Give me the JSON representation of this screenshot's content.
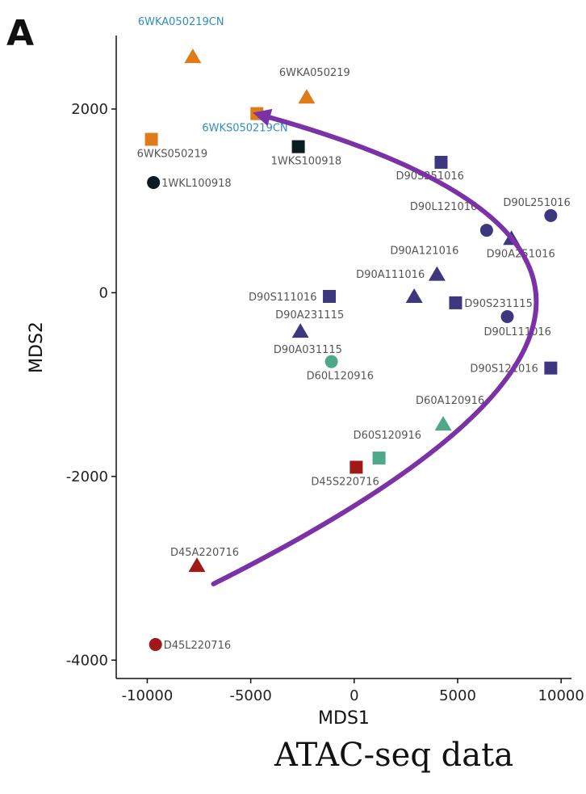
{
  "panel_label": "A",
  "caption": "ATAC-seq data",
  "colors": {
    "orange": "#e07b1a",
    "navy": "#3d3780",
    "dark": "#0c1a22",
    "teal": "#4ea88a",
    "red": "#a01818",
    "arrow": "#7a32a6"
  },
  "chart_data": {
    "type": "scatter",
    "title": "",
    "xlabel": "MDS1",
    "ylabel": "MDS2",
    "xlim": [
      -11500,
      10500
    ],
    "ylim": [
      -4200,
      2800
    ],
    "xticks": [
      -10000,
      -5000,
      0,
      5000,
      10000
    ],
    "xtick_labels": [
      "-10000",
      "-5000",
      "0",
      "5000",
      "10000"
    ],
    "yticks": [
      -4000,
      -2000,
      0,
      2000
    ],
    "ytick_labels": [
      "-4000",
      "-2000",
      "0",
      "2000"
    ],
    "grid": false,
    "legend": "none",
    "points": [
      {
        "label": "6WKA050219CN",
        "x": -7800,
        "y": 2570,
        "shape": "triangle",
        "color": "orange",
        "label_color": "blue"
      },
      {
        "label": "6WKA050219",
        "x": -2300,
        "y": 2130,
        "shape": "triangle",
        "color": "orange"
      },
      {
        "label": "6WKS050219CN",
        "x": -4700,
        "y": 1950,
        "shape": "square",
        "color": "orange",
        "label_color": "blue"
      },
      {
        "label": "6WKS050219",
        "x": -9800,
        "y": 1670,
        "shape": "square",
        "color": "orange"
      },
      {
        "label": "1WKS100918",
        "x": -2700,
        "y": 1590,
        "shape": "square",
        "color": "dark"
      },
      {
        "label": "1WKL100918",
        "x": -9700,
        "y": 1200,
        "shape": "circle",
        "color": "dark"
      },
      {
        "label": "D90S251016",
        "x": 4200,
        "y": 1420,
        "shape": "square",
        "color": "navy"
      },
      {
        "label": "D90L251016",
        "x": 9500,
        "y": 840,
        "shape": "circle",
        "color": "navy"
      },
      {
        "label": "D90L121016",
        "x": 6400,
        "y": 680,
        "shape": "circle",
        "color": "navy"
      },
      {
        "label": "D90A251016",
        "x": 7600,
        "y": 590,
        "shape": "triangle",
        "color": "navy"
      },
      {
        "label": "D90A121016",
        "x": 4000,
        "y": 200,
        "shape": "triangle",
        "color": "navy"
      },
      {
        "label": "D90A111016",
        "x": 2900,
        "y": -40,
        "shape": "triangle",
        "color": "navy"
      },
      {
        "label": "D90S231115",
        "x": 4900,
        "y": -110,
        "shape": "square",
        "color": "navy"
      },
      {
        "label": "D90S111016",
        "x": -1200,
        "y": -40,
        "shape": "square",
        "color": "navy"
      },
      {
        "label": "D90A231115",
        "x": -2600,
        "y": -420,
        "shape": "triangle",
        "color": "navy"
      },
      {
        "label": "D90L111016",
        "x": 7400,
        "y": -260,
        "shape": "circle",
        "color": "navy"
      },
      {
        "label": "D90S121016",
        "x": 9500,
        "y": -820,
        "shape": "square",
        "color": "navy"
      },
      {
        "label": "D60L120916",
        "x": -1100,
        "y": -750,
        "shape": "circle",
        "color": "teal"
      },
      {
        "label": "D60A120916",
        "x": 4300,
        "y": -1430,
        "shape": "triangle",
        "color": "teal"
      },
      {
        "label": "D60S120916",
        "x": 1200,
        "y": -1800,
        "shape": "square",
        "color": "teal"
      },
      {
        "label": "D45S220716",
        "x": 100,
        "y": -1900,
        "shape": "square",
        "color": "red"
      },
      {
        "label": "D45A220716",
        "x": -7600,
        "y": -2970,
        "shape": "triangle",
        "color": "red"
      },
      {
        "label": "D45L220716",
        "x": -9600,
        "y": -3830,
        "shape": "circle",
        "color": "red"
      }
    ],
    "extra_labels": [
      {
        "text": "D90A031115",
        "x": -3900,
        "y": -610
      }
    ],
    "trajectory": [
      {
        "x": -6800,
        "y": -3170
      },
      {
        "x": 8600,
        "y": -200
      },
      {
        "x": -4900,
        "y": 1960
      }
    ]
  }
}
